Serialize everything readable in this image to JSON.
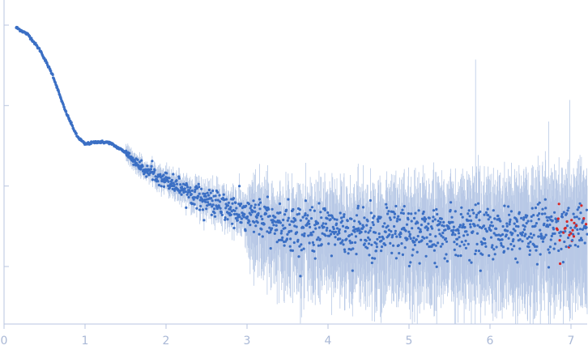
{
  "chart_data": {
    "type": "scatter",
    "title": "",
    "xlabel": "",
    "ylabel": "",
    "xlim": [
      0,
      7.2
    ],
    "x_ticks": [
      "0",
      "1",
      "2",
      "3",
      "4",
      "5",
      "6",
      "7"
    ],
    "y_scale": "log",
    "y_ticks_decades": 4,
    "y_tick_labels_shown": false,
    "grid": false,
    "legend": "none",
    "colors": {
      "axis": "#b9c6e0",
      "points": "#3b6fc4",
      "error_bars": "#b8c9e6",
      "outliers": "#d62828",
      "tick_text": "#a9b8d6"
    },
    "series": [
      {
        "style": "points-with-error-bars",
        "description_profile": [
          {
            "x": 0.15,
            "log10_y": 3.97
          },
          {
            "x": 0.3,
            "log10_y": 3.88
          },
          {
            "x": 0.45,
            "log10_y": 3.68
          },
          {
            "x": 0.6,
            "log10_y": 3.38
          },
          {
            "x": 0.75,
            "log10_y": 2.95
          },
          {
            "x": 0.9,
            "log10_y": 2.62
          },
          {
            "x": 1.0,
            "log10_y": 2.52
          },
          {
            "x": 1.15,
            "log10_y": 2.55
          },
          {
            "x": 1.3,
            "log10_y": 2.54
          },
          {
            "x": 1.5,
            "log10_y": 2.42
          },
          {
            "x": 1.7,
            "log10_y": 2.22
          },
          {
            "x": 2.0,
            "log10_y": 2.08
          },
          {
            "x": 2.5,
            "log10_y": 1.82
          },
          {
            "x": 3.0,
            "log10_y": 1.62
          },
          {
            "x": 3.5,
            "log10_y": 1.5
          },
          {
            "x": 4.0,
            "log10_y": 1.44
          },
          {
            "x": 5.0,
            "log10_y": 1.42
          },
          {
            "x": 6.0,
            "log10_y": 1.43
          },
          {
            "x": 7.0,
            "log10_y": 1.45
          },
          {
            "x": 7.2,
            "log10_y": 1.45
          }
        ]
      }
    ]
  }
}
